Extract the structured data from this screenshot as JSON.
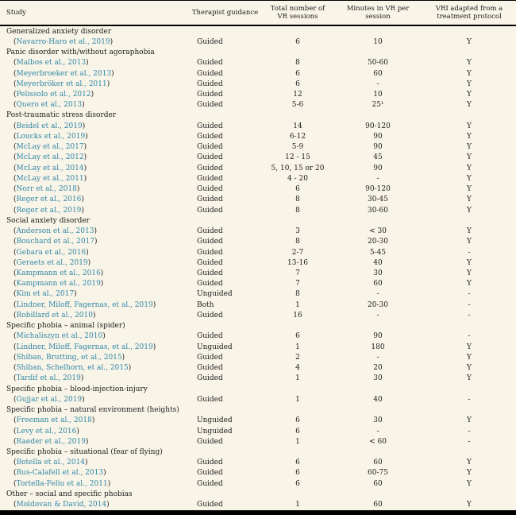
{
  "colors": {
    "background": "#f9f4e8",
    "text": "#1c1c1c",
    "link_teal": "#2f87a6",
    "border": "#000000"
  },
  "table": {
    "headers": [
      "Study",
      "Therapist guidance",
      "Total number of VR sessions",
      "Minutes in VR per session",
      "VRI adapted from a treatment protocol"
    ],
    "rows": [
      {
        "type": "section",
        "label": "Generalized anxiety disorder"
      },
      {
        "type": "study",
        "cite": "Navarro-Haro et al., 2019",
        "guidance": "Guided",
        "sessions": "6",
        "minutes": "10",
        "vri": "Y"
      },
      {
        "type": "section",
        "label": "Panic disorder with/without agoraphobia"
      },
      {
        "type": "study",
        "cite": "Malbos et al., 2013",
        "guidance": "Guided",
        "sessions": "8",
        "minutes": "50-60",
        "vri": "Y"
      },
      {
        "type": "study",
        "cite": "Meyerbroeker et al., 2013",
        "guidance": "Guided",
        "sessions": "6",
        "minutes": "60",
        "vri": "Y"
      },
      {
        "type": "study",
        "cite": "Meyerbröker et al., 2011",
        "guidance": "Guided",
        "sessions": "6",
        "minutes": "-",
        "vri": "Y"
      },
      {
        "type": "study",
        "cite": "Pelissolo et al., 2012",
        "guidance": "Guided",
        "sessions": "12",
        "minutes": "10",
        "vri": "Y"
      },
      {
        "type": "study",
        "cite": "Quero et al., 2013",
        "guidance": "Guided",
        "sessions": "5-6",
        "minutes": "25¹",
        "vri": "Y"
      },
      {
        "type": "section",
        "label": "Post-traumatic stress disorder"
      },
      {
        "type": "study",
        "cite": "Beidel et al., 2019",
        "guidance": "Guided",
        "sessions": "14",
        "minutes": "90-120",
        "vri": "Y"
      },
      {
        "type": "study",
        "cite": "Loucks et al., 2019",
        "guidance": "Guided",
        "sessions": "6-12",
        "minutes": "90",
        "vri": "Y"
      },
      {
        "type": "study",
        "cite": "McLay et al., 2017",
        "guidance": "Guided",
        "sessions": "5-9",
        "minutes": "90",
        "vri": "Y"
      },
      {
        "type": "study",
        "cite": "McLay et al., 2012",
        "guidance": "Guided",
        "sessions": "12 - 15",
        "minutes": "45",
        "vri": "Y"
      },
      {
        "type": "study",
        "cite": "McLay et al., 2014",
        "guidance": "Guided",
        "sessions": "5, 10, 15 or 20",
        "minutes": "90",
        "vri": "Y"
      },
      {
        "type": "study",
        "cite": "McLay et al., 2011",
        "guidance": "Guided",
        "sessions": "4 - 20",
        "minutes": "-",
        "vri": "Y"
      },
      {
        "type": "study",
        "cite": "Norr et al., 2018",
        "guidance": "Guided",
        "sessions": "6",
        "minutes": "90-120",
        "vri": "Y"
      },
      {
        "type": "study",
        "cite": "Reger et al., 2016",
        "guidance": "Guided",
        "sessions": "8",
        "minutes": "30-45",
        "vri": "Y"
      },
      {
        "type": "study",
        "cite": "Reger et al., 2019",
        "guidance": "Guided",
        "sessions": "8",
        "minutes": "30-60",
        "vri": "Y"
      },
      {
        "type": "section",
        "label": "Social anxiety disorder"
      },
      {
        "type": "study",
        "cite": "Anderson et al., 2013",
        "guidance": "Guided",
        "sessions": "3",
        "minutes": "< 30",
        "vri": "Y"
      },
      {
        "type": "study",
        "cite": "Bouchard et al., 2017",
        "guidance": "Guided",
        "sessions": "8",
        "minutes": "20-30",
        "vri": "Y"
      },
      {
        "type": "study",
        "cite": "Gebara et al., 2016",
        "guidance": "Guided",
        "sessions": "2-7",
        "minutes": "5-45",
        "vri": "-"
      },
      {
        "type": "study",
        "cite": "Geraets et al., 2019",
        "guidance": "Guided",
        "sessions": "13-16",
        "minutes": "40",
        "vri": "Y"
      },
      {
        "type": "study",
        "cite": "Kampmann et al., 2016",
        "guidance": "Guided",
        "sessions": "7",
        "minutes": "30",
        "vri": "Y"
      },
      {
        "type": "study",
        "cite": "Kampmann et al., 2019",
        "guidance": "Guided",
        "sessions": "7",
        "minutes": "60",
        "vri": "Y"
      },
      {
        "type": "study",
        "cite": "Kim et al., 2017",
        "guidance": "Unguided",
        "sessions": "8",
        "minutes": "-",
        "vri": "-"
      },
      {
        "type": "study",
        "cite": "Lindner, Miloff, Fagernas, et al., 2019",
        "guidance": "Both",
        "sessions": "1",
        "minutes": "20-30",
        "vri": "-"
      },
      {
        "type": "study",
        "cite": "Robillard et al., 2010",
        "guidance": "Guided",
        "sessions": "16",
        "minutes": "-",
        "vri": "-"
      },
      {
        "type": "section",
        "label": "Specific phobia – animal (spider)"
      },
      {
        "type": "study",
        "cite": "Michaliszyn et al., 2010",
        "guidance": "Guided",
        "sessions": "6",
        "minutes": "90",
        "vri": "-"
      },
      {
        "type": "study",
        "cite": "Lindner, Miloff, Fagernas, et al., 2019",
        "guidance": "Unguided",
        "sessions": "1",
        "minutes": "180",
        "vri": "Y"
      },
      {
        "type": "study",
        "cite": "Shiban, Brutting, et al., 2015",
        "guidance": "Guided",
        "sessions": "2",
        "minutes": "-",
        "vri": "Y"
      },
      {
        "type": "study",
        "cite": "Shiban, Schelhorn, et al., 2015",
        "guidance": "Guided",
        "sessions": "4",
        "minutes": "20",
        "vri": "Y"
      },
      {
        "type": "study",
        "cite": "Tardif et al., 2019",
        "guidance": "Guided",
        "sessions": "1",
        "minutes": "30",
        "vri": "Y"
      },
      {
        "type": "section",
        "label": "Specific phobia – blood-injection-injury"
      },
      {
        "type": "study",
        "cite": "Gujjar et al., 2019",
        "guidance": "Guided",
        "sessions": "1",
        "minutes": "40",
        "vri": "-"
      },
      {
        "type": "section",
        "label": "Specific phobia – natural environment (heights)"
      },
      {
        "type": "study",
        "cite": "Freeman et al., 2018",
        "guidance": "Unguided",
        "sessions": "6",
        "minutes": "30",
        "vri": "Y"
      },
      {
        "type": "study",
        "cite": "Levy et al., 2016",
        "guidance": "Unguided",
        "sessions": "6",
        "minutes": "-",
        "vri": "-"
      },
      {
        "type": "study",
        "cite": "Raeder et al., 2019",
        "guidance": "Guided",
        "sessions": "1",
        "minutes": "< 60",
        "vri": "-"
      },
      {
        "type": "section",
        "label": "Specific phobia – situational (fear of flying)"
      },
      {
        "type": "study",
        "cite": "Botella et al., 2014",
        "guidance": "Guided",
        "sessions": "6",
        "minutes": "60",
        "vri": "Y"
      },
      {
        "type": "study",
        "cite": "Rus-Calafell et al., 2013",
        "guidance": "Guided",
        "sessions": "6",
        "minutes": "60-75",
        "vri": "Y"
      },
      {
        "type": "study",
        "cite": "Tortella-Feliu et al., 2011",
        "guidance": "Guided",
        "sessions": "6",
        "minutes": "60",
        "vri": "Y"
      },
      {
        "type": "section",
        "label": "Other – social and specific phobias"
      },
      {
        "type": "study",
        "cite": "Moldovan & David, 2014",
        "guidance": "Guided",
        "sessions": "1",
        "minutes": "60",
        "vri": "Y"
      }
    ]
  }
}
